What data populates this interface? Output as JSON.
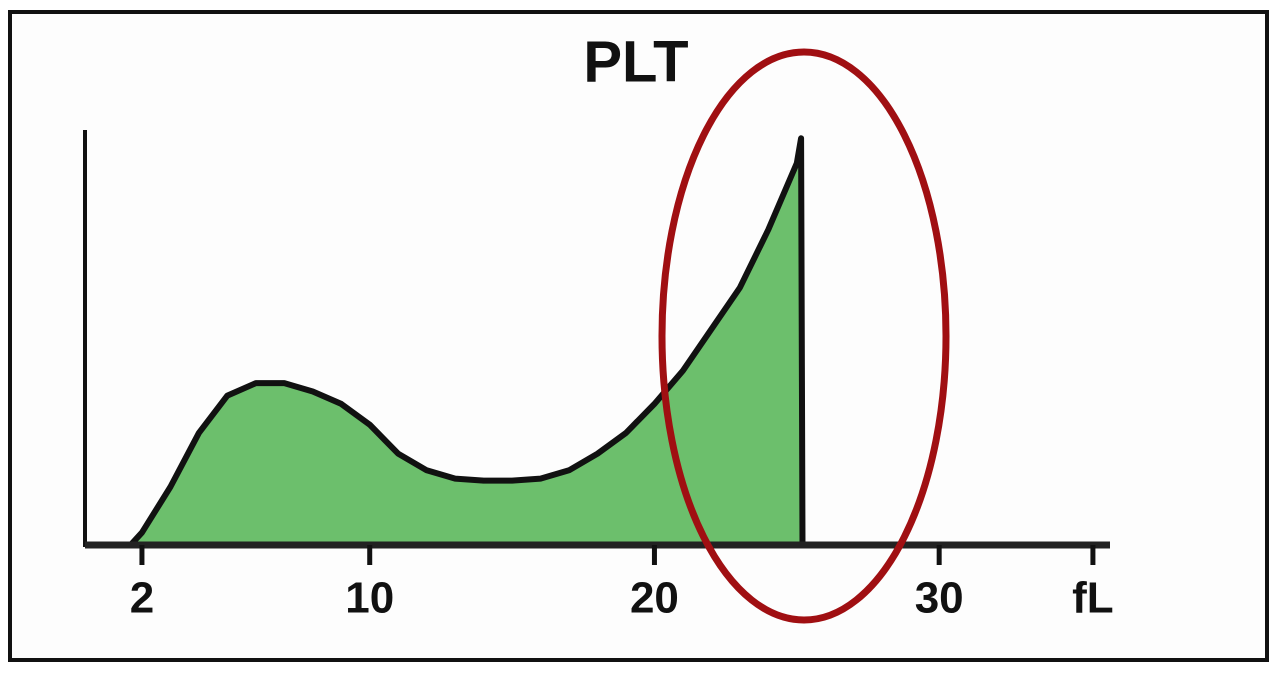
{
  "chart_data": {
    "type": "area",
    "title": "PLT",
    "x": [
      1.6,
      2,
      3,
      4,
      5,
      6,
      7,
      8,
      9,
      10,
      11,
      12,
      13,
      14,
      15,
      16,
      17,
      18,
      19,
      20,
      21,
      22,
      23,
      24,
      25,
      25.15,
      25.2
    ],
    "series": [
      {
        "name": "PLT",
        "color": "#6cbf6c",
        "values": [
          0,
          3,
          14,
          27,
          36,
          39,
          39,
          37,
          34,
          29,
          22,
          18,
          16,
          15.5,
          15.5,
          16,
          18,
          22,
          27,
          34,
          42,
          52,
          62,
          76,
          92,
          98,
          0
        ]
      }
    ],
    "xlim": [
      0,
      36
    ],
    "ylim": [
      0,
      100
    ],
    "xticks": [
      2,
      10,
      20,
      30,
      {
        "value": 35.4,
        "label": "fL"
      }
    ]
  }
}
